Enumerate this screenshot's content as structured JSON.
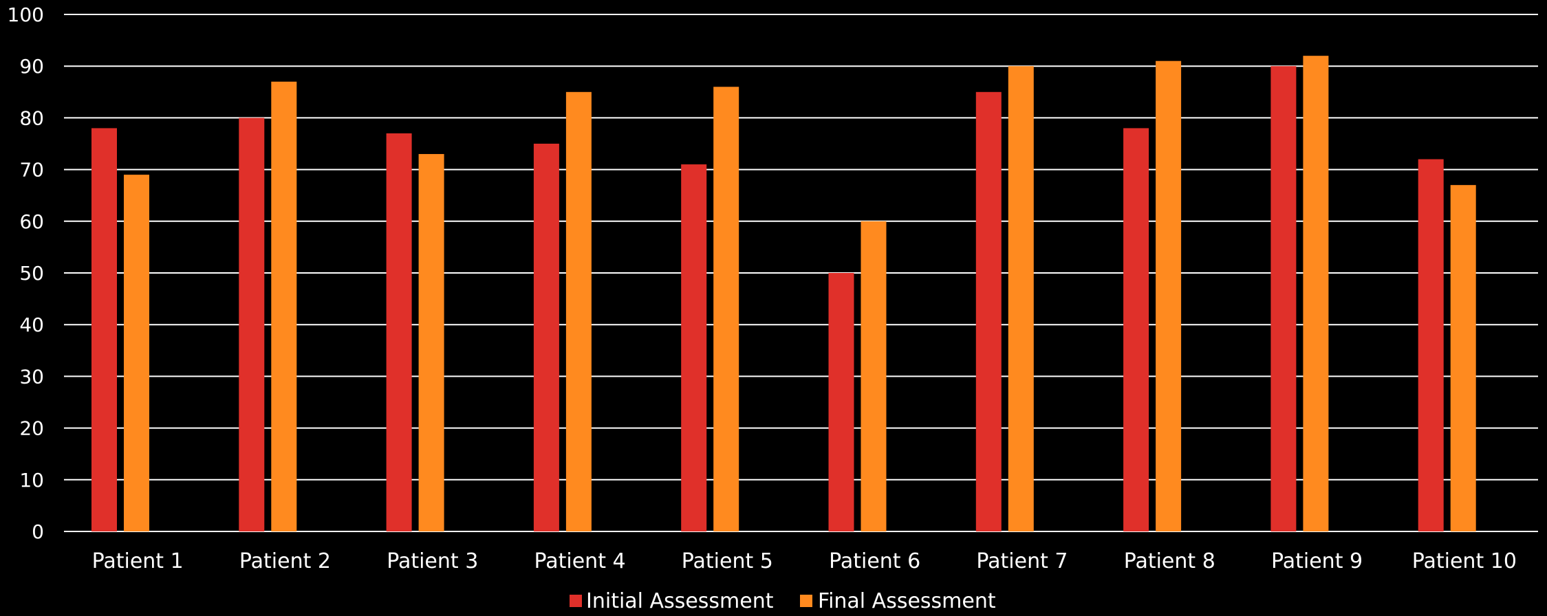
{
  "chart_data": {
    "type": "bar",
    "categories": [
      "Patient 1",
      "Patient 2",
      "Patient 3",
      "Patient 4",
      "Patient 5",
      "Patient 6",
      "Patient 7",
      "Patient 8",
      "Patient 9",
      "Patient 10"
    ],
    "series": [
      {
        "name": "Initial Assessment",
        "color": "#E0302A",
        "values": [
          78,
          80,
          77,
          75,
          71,
          50,
          85,
          78,
          90,
          72
        ]
      },
      {
        "name": "Final Assessment",
        "color": "#FF8A1F",
        "values": [
          69,
          87,
          73,
          85,
          86,
          60,
          90,
          91,
          92,
          67
        ]
      }
    ],
    "ylim": [
      0,
      100
    ],
    "yticks": [
      0,
      10,
      20,
      30,
      40,
      50,
      60,
      70,
      80,
      90,
      100
    ],
    "grid": true,
    "legend_position": "bottom",
    "background": "#000000",
    "text_color": "#FFFFFF",
    "grid_color": "#FFFFFF"
  }
}
